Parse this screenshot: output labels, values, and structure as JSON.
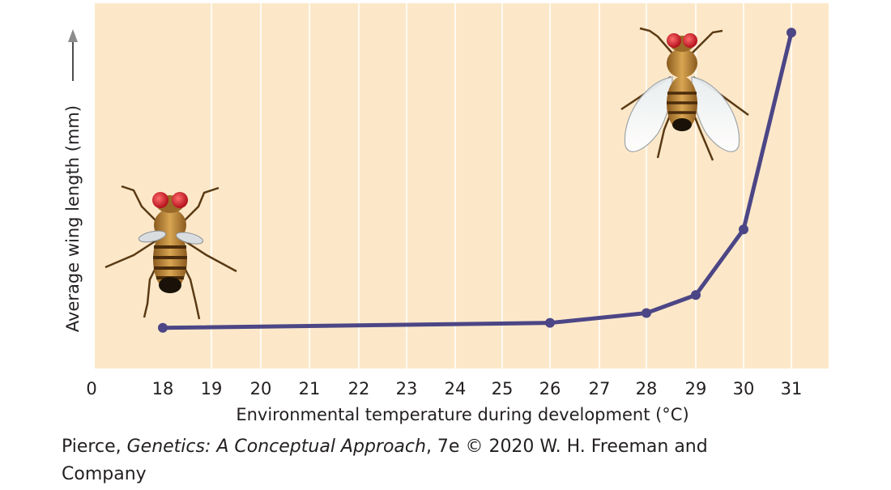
{
  "chart_data": {
    "type": "line",
    "xlabel": "Environmental temperature during development (°C)",
    "ylabel": "Average wing length (mm)",
    "x_tick_labels": [
      "0",
      "18",
      "19",
      "20",
      "21",
      "22",
      "23",
      "24",
      "25",
      "26",
      "27",
      "28",
      "29",
      "30",
      "31"
    ],
    "grid": true,
    "series": [
      {
        "points": [
          {
            "x": "18",
            "y": 0.05
          },
          {
            "x": "26",
            "y": 0.065
          },
          {
            "x": "28",
            "y": 0.095
          },
          {
            "x": "29",
            "y": 0.15
          },
          {
            "x": "30",
            "y": 0.35
          },
          {
            "x": "31",
            "y": 0.95
          }
        ]
      }
    ],
    "y_units": "relative (axis has no numeric ticks)",
    "ylim": [
      0,
      1
    ],
    "annotations": [
      "short-winged fruit fly illustration near 18 °C",
      "long-winged fruit fly illustration near 31 °C"
    ]
  },
  "colors": {
    "plot_background": "#fce8c9",
    "line": "#4c4686",
    "grid": "#ffffff",
    "text": "#231f20"
  },
  "credit": {
    "prefix": "Pierce, ",
    "title": "Genetics: A Conceptual Approach",
    "suffix": ", 7e © 2020 W. H. Freeman and Company"
  }
}
